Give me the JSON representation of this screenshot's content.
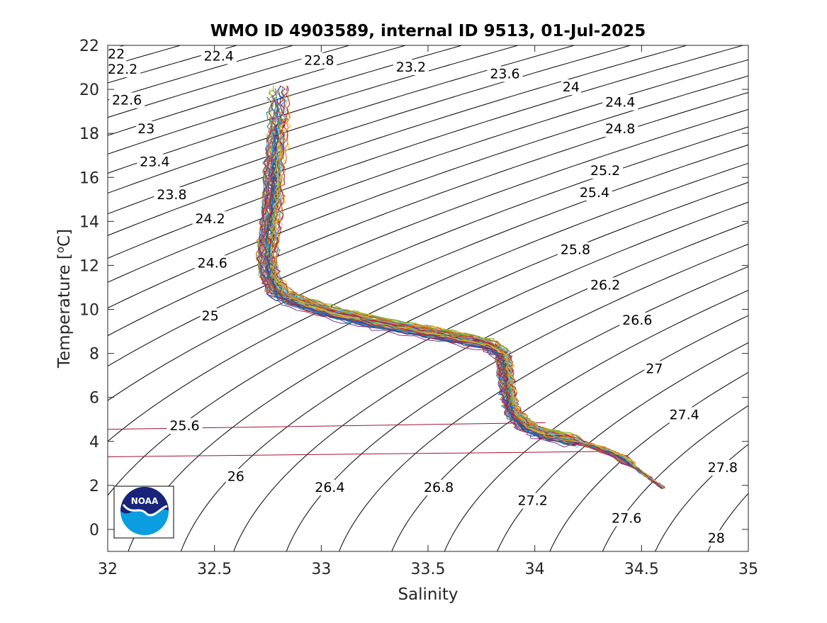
{
  "chart_data": {
    "type": "line",
    "title": "WMO ID 4903589, internal ID 9513, 01-Jul-2025",
    "xlabel": "Salinity",
    "ylabel_prefix": "Temperature [",
    "ylabel_sup": "o",
    "ylabel_suffix": "C]",
    "xlim": [
      32,
      35
    ],
    "ylim": [
      -1,
      22
    ],
    "xticks": [
      32,
      32.5,
      33,
      33.5,
      34,
      34.5,
      35
    ],
    "xtick_labels": [
      "32",
      "32.5",
      "33",
      "33.5",
      "34",
      "34.5",
      "35"
    ],
    "yticks": [
      0,
      2,
      4,
      6,
      8,
      10,
      12,
      14,
      16,
      18,
      20,
      22
    ],
    "ytick_labels": [
      "0",
      "2",
      "4",
      "6",
      "8",
      "10",
      "12",
      "14",
      "16",
      "18",
      "20",
      "22"
    ],
    "grid": false,
    "isopycnals": {
      "levels": [
        22,
        22.2,
        22.4,
        22.6,
        22.8,
        23,
        23.2,
        23.4,
        23.6,
        23.8,
        24,
        24.2,
        24.4,
        24.6,
        24.8,
        25,
        25.2,
        25.4,
        25.6,
        25.8,
        26,
        26.2,
        26.4,
        26.6,
        26.8,
        27,
        27.2,
        27.4,
        27.6,
        27.8,
        28
      ],
      "labels": [
        {
          "text": "22",
          "s": 32.04,
          "t": 21.6
        },
        {
          "text": "22.2",
          "s": 32.07,
          "t": 20.9
        },
        {
          "text": "22.4",
          "s": 32.52,
          "t": 21.5
        },
        {
          "text": "22.6",
          "s": 32.09,
          "t": 19.5
        },
        {
          "text": "22.8",
          "s": 32.99,
          "t": 21.3
        },
        {
          "text": "23",
          "s": 32.18,
          "t": 18.2
        },
        {
          "text": "23.2",
          "s": 33.42,
          "t": 21.0
        },
        {
          "text": "23.4",
          "s": 32.22,
          "t": 16.7
        },
        {
          "text": "23.6",
          "s": 33.86,
          "t": 20.7
        },
        {
          "text": "23.8",
          "s": 32.3,
          "t": 15.2
        },
        {
          "text": "24",
          "s": 34.17,
          "t": 20.1
        },
        {
          "text": "24.2",
          "s": 32.48,
          "t": 14.1
        },
        {
          "text": "24.4",
          "s": 34.4,
          "t": 19.4
        },
        {
          "text": "24.6",
          "s": 32.49,
          "t": 12.1
        },
        {
          "text": "24.8",
          "s": 34.4,
          "t": 18.2
        },
        {
          "text": "25",
          "s": 32.48,
          "t": 9.7
        },
        {
          "text": "25.2",
          "s": 34.33,
          "t": 16.3
        },
        {
          "text": "25.4",
          "s": 34.28,
          "t": 15.3
        },
        {
          "text": "25.6",
          "s": 32.36,
          "t": 4.7
        },
        {
          "text": "25.8",
          "s": 34.19,
          "t": 12.7
        },
        {
          "text": "26",
          "s": 32.6,
          "t": 2.4
        },
        {
          "text": "26.2",
          "s": 34.33,
          "t": 11.1
        },
        {
          "text": "26.4",
          "s": 33.04,
          "t": 1.9
        },
        {
          "text": "26.6",
          "s": 34.48,
          "t": 9.5
        },
        {
          "text": "26.8",
          "s": 33.55,
          "t": 1.9
        },
        {
          "text": "27",
          "s": 34.56,
          "t": 7.3
        },
        {
          "text": "27.2",
          "s": 33.99,
          "t": 1.3
        },
        {
          "text": "27.4",
          "s": 34.7,
          "t": 5.2
        },
        {
          "text": "27.6",
          "s": 34.43,
          "t": 0.5
        },
        {
          "text": "27.8",
          "s": 34.88,
          "t": 2.8
        },
        {
          "text": "28",
          "s": 34.85,
          "t": -0.4
        }
      ]
    },
    "reference_lines": [
      {
        "color": "#a2142f",
        "points": [
          [
            32,
            4.55
          ],
          [
            34.05,
            4.85
          ]
        ]
      },
      {
        "color": "#a2142f",
        "points": [
          [
            32,
            3.3
          ],
          [
            34.38,
            3.55
          ]
        ]
      }
    ],
    "mean_profile": [
      [
        34.6,
        1.9
      ],
      [
        34.5,
        2.6
      ],
      [
        34.4,
        3.3
      ],
      [
        34.3,
        3.7
      ],
      [
        34.15,
        4.1
      ],
      [
        34.02,
        4.4
      ],
      [
        33.95,
        4.75
      ],
      [
        33.9,
        5.3
      ],
      [
        33.88,
        6.0
      ],
      [
        33.87,
        6.8
      ],
      [
        33.86,
        7.5
      ],
      [
        33.85,
        8.0
      ],
      [
        33.78,
        8.4
      ],
      [
        33.62,
        8.75
      ],
      [
        33.45,
        9.05
      ],
      [
        33.25,
        9.4
      ],
      [
        33.05,
        9.85
      ],
      [
        32.9,
        10.3
      ],
      [
        32.8,
        10.8
      ],
      [
        32.76,
        11.5
      ],
      [
        32.75,
        12.5
      ],
      [
        32.76,
        13.5
      ],
      [
        32.77,
        14.5
      ],
      [
        32.78,
        15.5
      ],
      [
        32.78,
        16.5
      ],
      [
        32.79,
        17.5
      ],
      [
        32.8,
        18.5
      ],
      [
        32.8,
        19.5
      ],
      [
        32.8,
        20.3
      ]
    ],
    "series_count": 60,
    "series_colors": [
      "#0072bd",
      "#d95319",
      "#edb120",
      "#7e2f8e",
      "#77ac30",
      "#4dbeee",
      "#a2142f"
    ]
  },
  "logo": {
    "text": "NOAA"
  }
}
